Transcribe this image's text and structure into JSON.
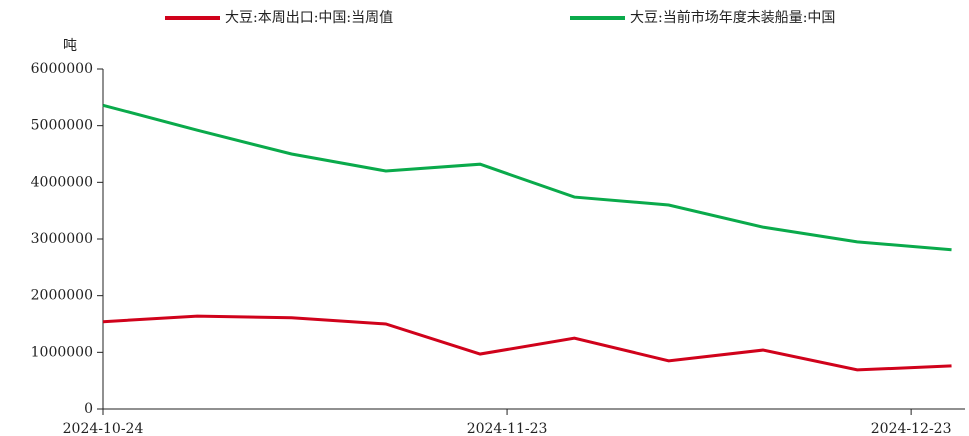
{
  "chart_data": {
    "type": "line",
    "y_label": "吨",
    "x": [
      "2024-10-24",
      "2024-10-31",
      "2024-11-07",
      "2024-11-14",
      "2024-11-21",
      "2024-11-28",
      "2024-12-05",
      "2024-12-12",
      "2024-12-19",
      "2024-12-26"
    ],
    "series": [
      {
        "name": "大豆:本周出口:中国:当周值",
        "color": "#d0021b",
        "values": [
          1540000,
          1640000,
          1610000,
          1500000,
          970000,
          1250000,
          850000,
          1040000,
          690000,
          760000
        ]
      },
      {
        "name": "大豆:当前市场年度未装船量:中国",
        "color": "#0aaa4b",
        "values": [
          5360000,
          4920000,
          4500000,
          4200000,
          4320000,
          3740000,
          3600000,
          3210000,
          2950000,
          2810000
        ]
      }
    ],
    "xlim": [
      "2024-10-24",
      "2024-12-27"
    ],
    "xticks": [
      "2024-10-24",
      "2024-11-23",
      "2024-12-23"
    ],
    "ylim": [
      0,
      6000000
    ],
    "yticks": [
      0,
      1000000,
      2000000,
      3000000,
      4000000,
      5000000,
      6000000
    ],
    "legend": "top"
  }
}
